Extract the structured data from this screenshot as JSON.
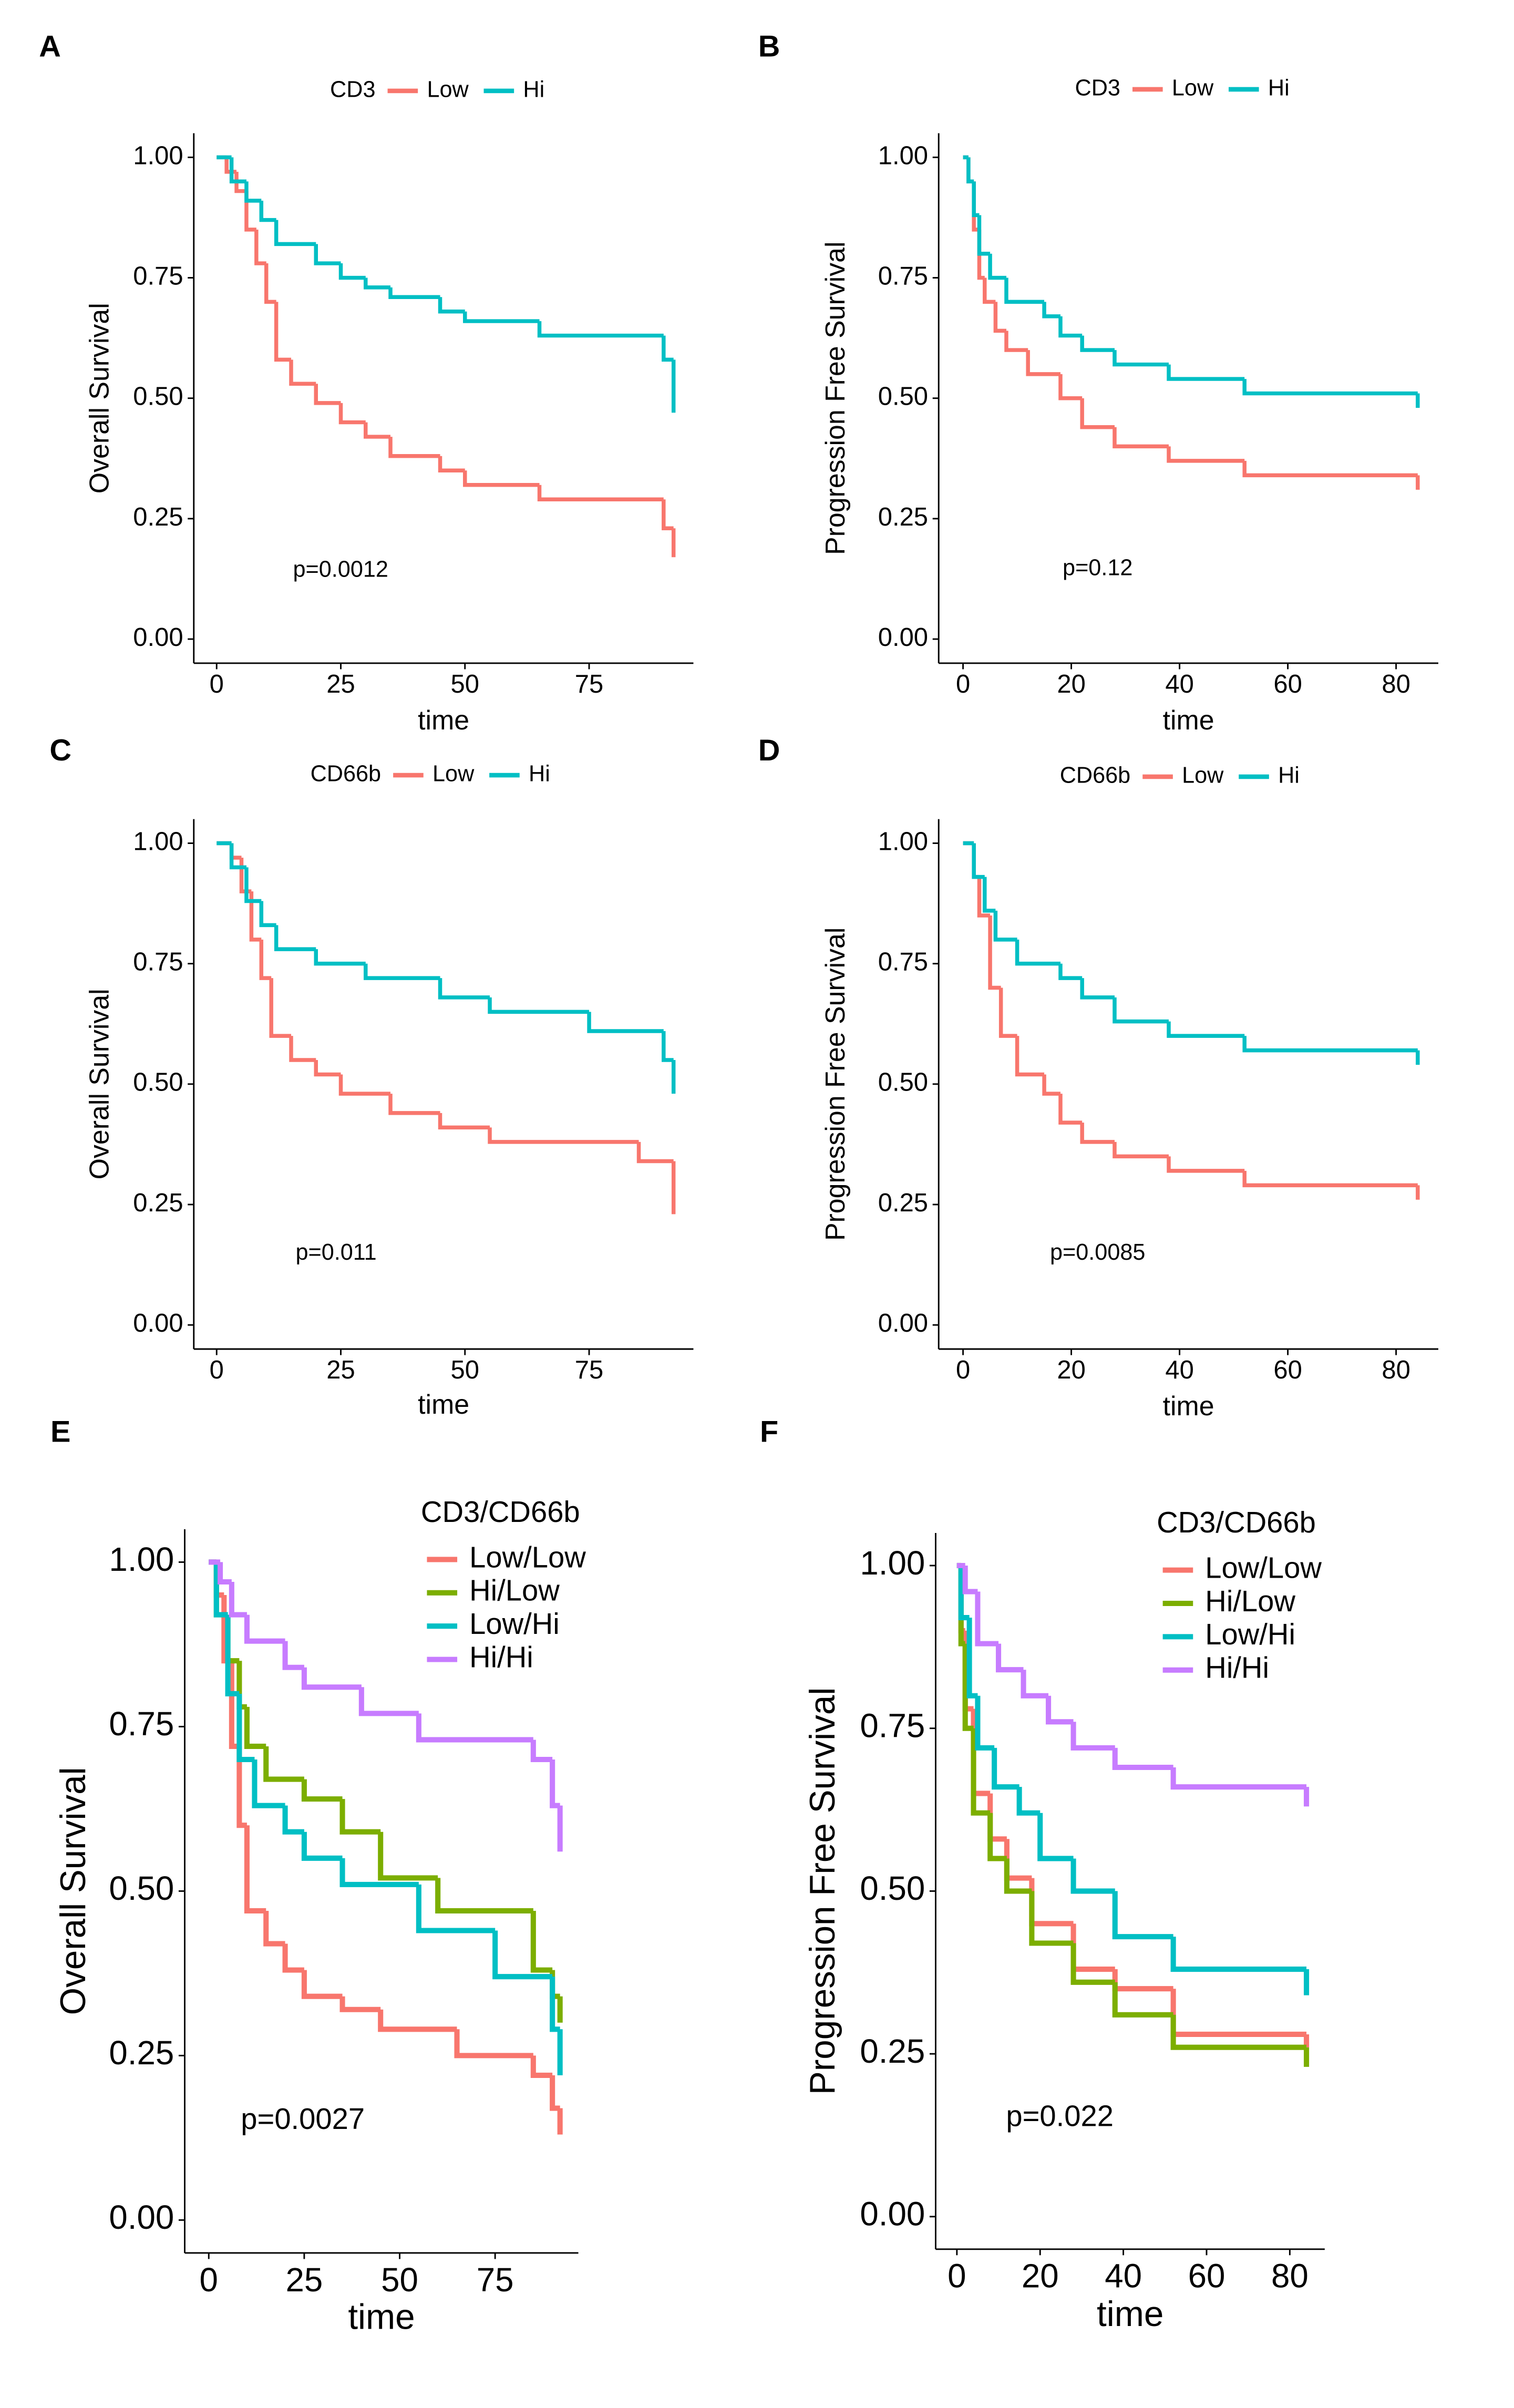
{
  "chart_data": [
    {
      "type": "line",
      "step": true,
      "panel": "A",
      "legend_title": "CD3",
      "legend": "top",
      "xlabel": "time",
      "ylabel": "Overall Survival",
      "annotation": "p=0.0012",
      "xlim": [
        -4.6,
        96
      ],
      "ylim": [
        -0.05,
        1.05
      ],
      "xticks": [
        0,
        25,
        50,
        75
      ],
      "yticks": [
        {
          "value": 0,
          "label": "0.00"
        },
        {
          "value": 0.25,
          "label": "0.25"
        },
        {
          "value": 0.5,
          "label": "0.50"
        },
        {
          "value": 0.75,
          "label": "0.75"
        },
        {
          "value": 1,
          "label": "1.00"
        }
      ],
      "series": [
        {
          "name": "Low",
          "color": "#F8766D",
          "x": [
            0,
            2,
            4,
            6,
            8,
            10,
            12,
            15,
            20,
            25,
            30,
            35,
            45,
            50,
            65,
            90,
            92
          ],
          "values": [
            1,
            0.97,
            0.93,
            0.85,
            0.78,
            0.7,
            0.58,
            0.53,
            0.49,
            0.45,
            0.42,
            0.38,
            0.35,
            0.32,
            0.29,
            0.23,
            0.17
          ]
        },
        {
          "name": "Hi",
          "color": "#00BFC4",
          "x": [
            0,
            3,
            6,
            9,
            12,
            20,
            25,
            30,
            35,
            45,
            50,
            65,
            90,
            92
          ],
          "values": [
            1,
            0.95,
            0.91,
            0.87,
            0.82,
            0.78,
            0.75,
            0.73,
            0.71,
            0.68,
            0.66,
            0.63,
            0.58,
            0.47
          ]
        }
      ]
    },
    {
      "type": "line",
      "step": true,
      "panel": "B",
      "legend_title": "CD3",
      "legend": "top",
      "xlabel": "time",
      "ylabel": "Progression Free Survival",
      "annotation": "p=0.12",
      "xlim": [
        -4.5,
        87.8
      ],
      "ylim": [
        -0.05,
        1.05
      ],
      "xticks": [
        0,
        20,
        40,
        60,
        80
      ],
      "yticks": [
        {
          "value": 0,
          "label": "0.00"
        },
        {
          "value": 0.25,
          "label": "0.25"
        },
        {
          "value": 0.5,
          "label": "0.50"
        },
        {
          "value": 0.75,
          "label": "0.75"
        },
        {
          "value": 1,
          "label": "1.00"
        }
      ],
      "series": [
        {
          "name": "Low",
          "color": "#F8766D",
          "x": [
            0,
            1,
            2,
            3,
            4,
            6,
            8,
            12,
            18,
            22,
            28,
            38,
            52,
            84
          ],
          "values": [
            1,
            0.95,
            0.85,
            0.75,
            0.7,
            0.64,
            0.6,
            0.55,
            0.5,
            0.44,
            0.4,
            0.37,
            0.34,
            0.31
          ]
        },
        {
          "name": "Hi",
          "color": "#00BFC4",
          "x": [
            0,
            1,
            2,
            3,
            5,
            8,
            15,
            18,
            22,
            28,
            38,
            52,
            84
          ],
          "values": [
            1,
            0.95,
            0.88,
            0.8,
            0.75,
            0.7,
            0.67,
            0.63,
            0.6,
            0.57,
            0.54,
            0.51,
            0.48
          ]
        }
      ]
    },
    {
      "type": "line",
      "step": true,
      "panel": "C",
      "legend_title": "CD66b",
      "legend": "top",
      "xlabel": "time",
      "ylabel": "Overall Survival",
      "annotation": "p=0.011",
      "xlim": [
        -4.6,
        96
      ],
      "ylim": [
        -0.05,
        1.05
      ],
      "xticks": [
        0,
        25,
        50,
        75
      ],
      "yticks": [
        {
          "value": 0,
          "label": "0.00"
        },
        {
          "value": 0.25,
          "label": "0.25"
        },
        {
          "value": 0.5,
          "label": "0.50"
        },
        {
          "value": 0.75,
          "label": "0.75"
        },
        {
          "value": 1,
          "label": "1.00"
        }
      ],
      "series": [
        {
          "name": "Low",
          "color": "#F8766D",
          "x": [
            0,
            3,
            5,
            7,
            9,
            11,
            15,
            20,
            25,
            35,
            45,
            55,
            85,
            92
          ],
          "values": [
            1,
            0.97,
            0.9,
            0.8,
            0.72,
            0.6,
            0.55,
            0.52,
            0.48,
            0.44,
            0.41,
            0.38,
            0.34,
            0.23
          ]
        },
        {
          "name": "Hi",
          "color": "#00BFC4",
          "x": [
            0,
            3,
            6,
            9,
            12,
            20,
            30,
            45,
            55,
            75,
            90,
            92
          ],
          "values": [
            1,
            0.95,
            0.88,
            0.83,
            0.78,
            0.75,
            0.72,
            0.68,
            0.65,
            0.61,
            0.55,
            0.48
          ]
        }
      ]
    },
    {
      "type": "line",
      "step": true,
      "panel": "D",
      "legend_title": "CD66b",
      "legend": "top",
      "xlabel": "time",
      "ylabel": "Progression Free Survival",
      "annotation": "p=0.0085",
      "xlim": [
        -4.5,
        87.8
      ],
      "ylim": [
        -0.05,
        1.05
      ],
      "xticks": [
        0,
        20,
        40,
        60,
        80
      ],
      "yticks": [
        {
          "value": 0,
          "label": "0.00"
        },
        {
          "value": 0.25,
          "label": "0.25"
        },
        {
          "value": 0.5,
          "label": "0.50"
        },
        {
          "value": 0.75,
          "label": "0.75"
        },
        {
          "value": 1,
          "label": "1.00"
        }
      ],
      "series": [
        {
          "name": "Low",
          "color": "#F8766D",
          "x": [
            0,
            2,
            3,
            5,
            7,
            10,
            15,
            18,
            22,
            28,
            38,
            52,
            84
          ],
          "values": [
            1,
            0.93,
            0.85,
            0.7,
            0.6,
            0.52,
            0.48,
            0.42,
            0.38,
            0.35,
            0.32,
            0.29,
            0.26
          ]
        },
        {
          "name": "Hi",
          "color": "#00BFC4",
          "x": [
            0,
            2,
            4,
            6,
            10,
            18,
            22,
            28,
            38,
            52,
            84
          ],
          "values": [
            1,
            0.93,
            0.86,
            0.8,
            0.75,
            0.72,
            0.68,
            0.63,
            0.6,
            0.57,
            0.54
          ]
        }
      ]
    },
    {
      "type": "line",
      "step": true,
      "panel": "E",
      "legend_title": "CD3/CD66b",
      "legend": "top-right",
      "xlabel": "time",
      "ylabel": "Overall Survival",
      "annotation": "p=0.0027",
      "xlim": [
        -6.3,
        96.8
      ],
      "ylim": [
        -0.05,
        1.05
      ],
      "xticks": [
        0,
        25,
        50,
        75
      ],
      "yticks": [
        {
          "value": 0,
          "label": "0.00"
        },
        {
          "value": 0.25,
          "label": "0.25"
        },
        {
          "value": 0.5,
          "label": "0.50"
        },
        {
          "value": 0.75,
          "label": "0.75"
        },
        {
          "value": 1,
          "label": "1.00"
        }
      ],
      "series": [
        {
          "name": "Low/Low",
          "color": "#F8766D",
          "x": [
            0,
            2,
            4,
            6,
            8,
            10,
            15,
            20,
            25,
            35,
            45,
            65,
            85,
            90,
            92
          ],
          "values": [
            1,
            0.95,
            0.85,
            0.72,
            0.6,
            0.47,
            0.42,
            0.38,
            0.34,
            0.32,
            0.29,
            0.25,
            0.22,
            0.17,
            0.13
          ]
        },
        {
          "name": "Hi/Low",
          "color": "#7CAE00",
          "x": [
            0,
            2,
            5,
            8,
            10,
            15,
            25,
            35,
            45,
            60,
            85,
            90,
            92
          ],
          "values": [
            1,
            0.92,
            0.85,
            0.78,
            0.72,
            0.67,
            0.64,
            0.59,
            0.52,
            0.47,
            0.38,
            0.34,
            0.3
          ]
        },
        {
          "name": "Low/Hi",
          "color": "#00BFC4",
          "x": [
            0,
            2,
            5,
            8,
            12,
            20,
            25,
            35,
            55,
            75,
            90,
            92
          ],
          "values": [
            1,
            0.92,
            0.8,
            0.7,
            0.63,
            0.59,
            0.55,
            0.51,
            0.44,
            0.37,
            0.29,
            0.22
          ]
        },
        {
          "name": "Hi/Hi",
          "color": "#C77CFF",
          "x": [
            0,
            3,
            6,
            10,
            20,
            25,
            40,
            55,
            85,
            90,
            92
          ],
          "values": [
            1,
            0.97,
            0.92,
            0.88,
            0.84,
            0.81,
            0.77,
            0.73,
            0.7,
            0.63,
            0.56
          ]
        }
      ]
    },
    {
      "type": "line",
      "step": true,
      "panel": "F",
      "legend_title": "CD3/CD66b",
      "legend": "top-right",
      "xlabel": "time",
      "ylabel": "Progression Free Survival",
      "annotation": "p=0.022",
      "xlim": [
        -5.1,
        88.4
      ],
      "ylim": [
        -0.05,
        1.05
      ],
      "xticks": [
        0,
        20,
        40,
        60,
        80
      ],
      "yticks": [
        {
          "value": 0,
          "label": "0.00"
        },
        {
          "value": 0.25,
          "label": "0.25"
        },
        {
          "value": 0.5,
          "label": "0.50"
        },
        {
          "value": 0.75,
          "label": "0.75"
        },
        {
          "value": 1,
          "label": "1.00"
        }
      ],
      "series": [
        {
          "name": "Low/Low",
          "color": "#F8766D",
          "x": [
            0,
            1,
            2,
            4,
            8,
            12,
            18,
            28,
            38,
            52,
            84
          ],
          "values": [
            1,
            0.9,
            0.78,
            0.65,
            0.58,
            0.52,
            0.45,
            0.38,
            0.35,
            0.28,
            0.26
          ]
        },
        {
          "name": "Hi/Low",
          "color": "#7CAE00",
          "x": [
            0,
            1,
            2,
            4,
            8,
            12,
            18,
            28,
            38,
            52,
            84
          ],
          "values": [
            1,
            0.88,
            0.75,
            0.62,
            0.55,
            0.5,
            0.42,
            0.36,
            0.31,
            0.26,
            0.23
          ]
        },
        {
          "name": "Low/Hi",
          "color": "#00BFC4",
          "x": [
            0,
            1,
            3,
            5,
            9,
            15,
            20,
            28,
            38,
            52,
            84
          ],
          "values": [
            1,
            0.92,
            0.8,
            0.72,
            0.66,
            0.62,
            0.55,
            0.5,
            0.43,
            0.38,
            0.34
          ]
        },
        {
          "name": "Hi/Hi",
          "color": "#C77CFF",
          "x": [
            0,
            2,
            5,
            10,
            16,
            22,
            28,
            38,
            52,
            84
          ],
          "values": [
            1,
            0.96,
            0.88,
            0.84,
            0.8,
            0.76,
            0.72,
            0.69,
            0.66,
            0.63
          ]
        }
      ]
    }
  ]
}
